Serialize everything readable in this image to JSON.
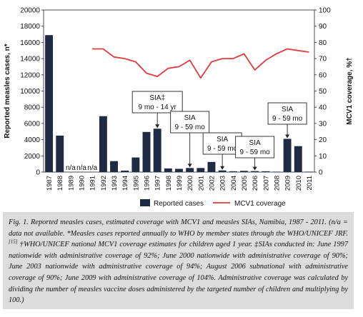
{
  "chart_data": {
    "type": "bar",
    "categories": [
      "1987",
      "1988",
      "1989",
      "1990",
      "1991",
      "1992",
      "1993",
      "1994",
      "1995",
      "1996",
      "1997",
      "1998",
      "1999",
      "2000",
      "2001",
      "2002",
      "2003",
      "2004",
      "2005",
      "2006",
      "2007",
      "2008",
      "2009",
      "2010",
      "2011"
    ],
    "series": [
      {
        "name": "Reported cases",
        "kind": "bar",
        "axis": "left",
        "color": "#1f2a44",
        "values": [
          16900,
          4500,
          null,
          null,
          null,
          6900,
          1350,
          180,
          1800,
          4950,
          5350,
          450,
          400,
          500,
          500,
          1250,
          200,
          100,
          150,
          120,
          100,
          50,
          4100,
          3200,
          50
        ]
      },
      {
        "name": "MCV1 coverage",
        "kind": "line",
        "axis": "right",
        "color": "#e0393e",
        "values": [
          null,
          null,
          null,
          null,
          76,
          76,
          71,
          70,
          68,
          61,
          59,
          64,
          65,
          69,
          58,
          68,
          70,
          70,
          73,
          63,
          69,
          73,
          76,
          75,
          74
        ]
      }
    ],
    "na_labels": [
      {
        "category": "1989",
        "text": "n/a"
      },
      {
        "category": "1990",
        "text": "n/a"
      },
      {
        "category": "1991",
        "text": "n/a"
      }
    ],
    "left_axis": {
      "label": "Reported measles cases, n*",
      "min": 0,
      "max": 20000,
      "ticks": [
        "0",
        "2000",
        "4000",
        "6000",
        "8000",
        "10000",
        "12000",
        "14000",
        "16000",
        "18000",
        "20000"
      ]
    },
    "right_axis": {
      "label": "MCV1 coverage, %†",
      "min": 0,
      "max": 100,
      "ticks": [
        "0",
        "10",
        "20",
        "30",
        "40",
        "50",
        "60",
        "70",
        "80",
        "90",
        "100"
      ]
    },
    "annotations": [
      {
        "category": "1997",
        "line1": "SIA‡",
        "line2": "9 mo - 14 yr"
      },
      {
        "category": "2000",
        "line1": "SIA",
        "line2": "9 - 59 mo"
      },
      {
        "category": "2003",
        "line1": "SIA",
        "line2": "9 - 59 mo"
      },
      {
        "category": "2006",
        "line1": "SIA",
        "line2": "9 - 59 mo"
      },
      {
        "category": "2009",
        "line1": "SIA",
        "line2": "9 - 59 mo"
      }
    ],
    "legend": {
      "position": "bottom"
    }
  },
  "caption": {
    "part1": "Fig. 1. Reported measles cases, estimated coverage with MCV1 and measles SIAs, Namibia, 1987 - 2011. (n/a = data not available. *Measles cases reported annually to WHO by member states through the WHO/UNICEF JRF.",
    "ref": "[15]",
    "part2": " †WHO/UNICEF national MCV1 coverage estimates for children aged 1 year. ‡SIAs conducted in: June 1997 nationwide with administrative coverage of 92%; June 2000 nationwide with administrative coverage of 90%; June 2003 nationwide with administrative coverage of 94%; August 2006 subnational with administrative coverage of 90%; June 2009 with administrative coverage of 104%. Administrative coverage was calculated by dividing the number of measles vaccine doses administered by the targeted number of children and multiplying by 100.)"
  }
}
